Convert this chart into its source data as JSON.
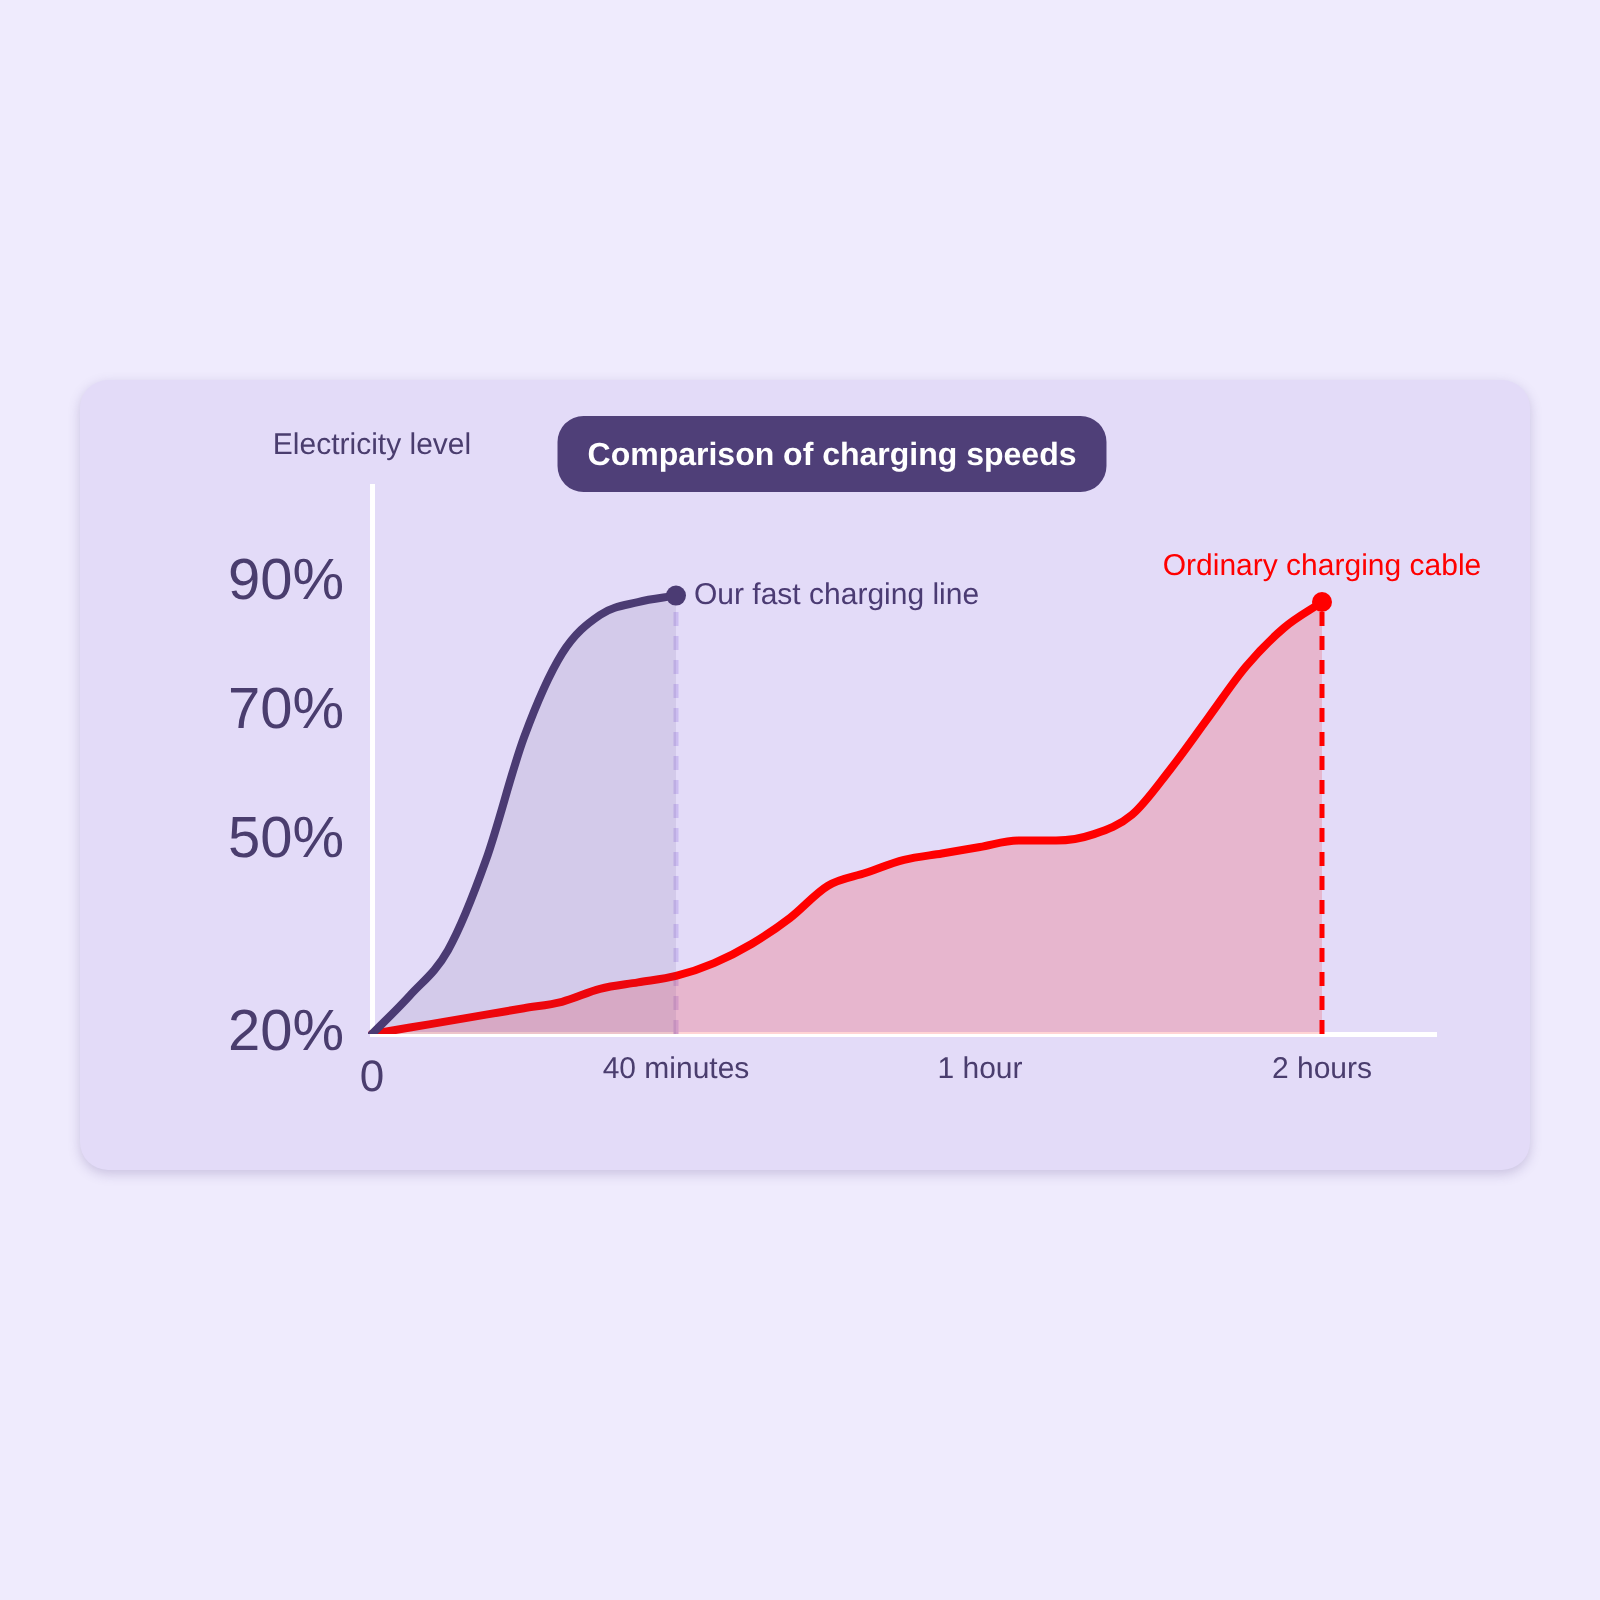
{
  "chart_data": {
    "type": "area",
    "title": "Comparison of charging speeds",
    "ylabel": "Electricity level",
    "categories": [
      "0",
      null,
      null,
      null,
      null,
      null,
      null,
      null,
      "40 minutes",
      null,
      null,
      null,
      null,
      null,
      null,
      null,
      "1 hour",
      null,
      null,
      null,
      null,
      null,
      null,
      null,
      null,
      "2 hours",
      null,
      null,
      null
    ],
    "ylim": [
      20,
      105
    ],
    "yticks": [
      {
        "value": 20,
        "label": "20%"
      },
      {
        "value": 50,
        "label": "50%"
      },
      {
        "value": 70,
        "label": "70%"
      },
      {
        "value": 90,
        "label": "90%"
      }
    ],
    "grid": false,
    "legend": false,
    "series": [
      {
        "name": "Our fast charging line",
        "color": "#4b3b73",
        "values": [
          20,
          26,
          33,
          47,
          66,
          79,
          85,
          87,
          88,
          null,
          null,
          null,
          null,
          null,
          null,
          null,
          null,
          null,
          null,
          null,
          null,
          null,
          null,
          null,
          null,
          null,
          null,
          null,
          null
        ]
      },
      {
        "name": "Ordinary charging cable",
        "color": "#ff0000",
        "values": [
          20,
          21,
          22,
          23,
          24,
          25,
          27,
          28,
          29,
          31,
          34,
          38,
          43,
          45,
          47,
          48,
          49,
          50,
          50,
          51,
          54,
          61,
          69,
          77,
          83,
          87,
          null,
          null,
          null
        ]
      }
    ],
    "ref_lines": [
      {
        "axis": "x",
        "value": "40 minutes",
        "color": "#cbbcf0",
        "line_style": "dashed"
      },
      {
        "axis": "x",
        "value": "2 hours",
        "color": "#ff0000",
        "line_style": "dashed"
      }
    ]
  }
}
